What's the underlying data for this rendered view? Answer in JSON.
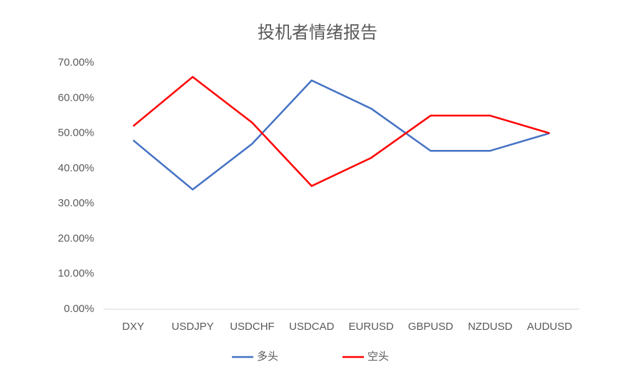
{
  "chart_data": {
    "type": "line",
    "title": "投机者情绪报告",
    "categories": [
      "DXY",
      "USDJPY",
      "USDCHF",
      "USDCAD",
      "EURUSD",
      "GBPUSD",
      "NZDUSD",
      "AUDUSD"
    ],
    "series": [
      {
        "name": "多头",
        "color": "#4472c4",
        "values": [
          48,
          34,
          47,
          65,
          57,
          45,
          45,
          50
        ]
      },
      {
        "name": "空头",
        "color": "#ff0000",
        "values": [
          52,
          66,
          53,
          35,
          43,
          55,
          55,
          50
        ]
      }
    ],
    "ylim": [
      0,
      70
    ],
    "yticks": [
      {
        "value": 0,
        "label": "0.00%"
      },
      {
        "value": 10,
        "label": "10.00%"
      },
      {
        "value": 20,
        "label": "20.00%"
      },
      {
        "value": 30,
        "label": "30.00%"
      },
      {
        "value": 40,
        "label": "40.00%"
      },
      {
        "value": 50,
        "label": "50.00%"
      },
      {
        "value": 60,
        "label": "60.00%"
      },
      {
        "value": 70,
        "label": "70.00%"
      }
    ],
    "grid": false,
    "legend": "bottom"
  }
}
